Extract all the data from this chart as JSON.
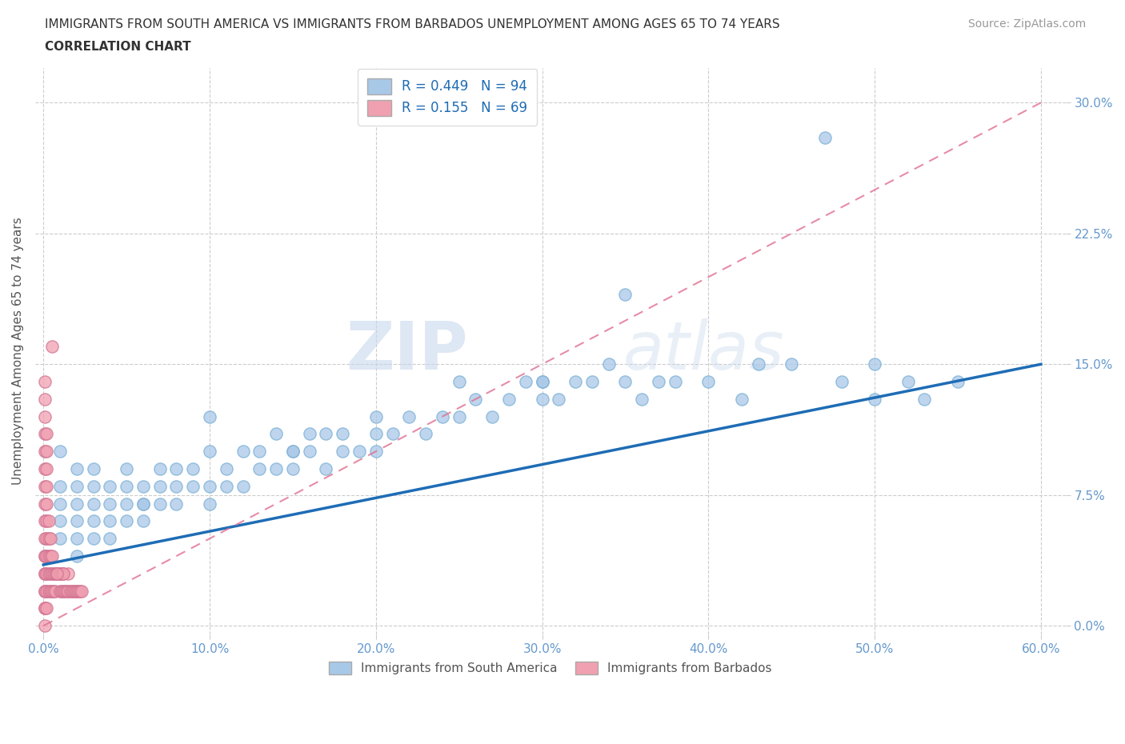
{
  "title_line1": "IMMIGRANTS FROM SOUTH AMERICA VS IMMIGRANTS FROM BARBADOS UNEMPLOYMENT AMONG AGES 65 TO 74 YEARS",
  "title_line2": "CORRELATION CHART",
  "source": "Source: ZipAtlas.com",
  "ylabel": "Unemployment Among Ages 65 to 74 years",
  "xlim": [
    -0.005,
    0.615
  ],
  "ylim": [
    -0.005,
    0.32
  ],
  "xticks": [
    0.0,
    0.1,
    0.2,
    0.3,
    0.4,
    0.5,
    0.6
  ],
  "yticks": [
    0.0,
    0.075,
    0.15,
    0.225,
    0.3
  ],
  "ytick_labels": [
    "0.0%",
    "7.5%",
    "15.0%",
    "22.5%",
    "30.0%"
  ],
  "xtick_labels": [
    "0.0%",
    "10.0%",
    "20.0%",
    "30.0%",
    "40.0%",
    "50.0%",
    "60.0%"
  ],
  "color_sa": "#a8c8e8",
  "color_bbd": "#f0a0b0",
  "trend_sa_color": "#1e6cb5",
  "trend_bbd_color": "#e07090",
  "R_sa": 0.449,
  "N_sa": 94,
  "R_bbd": 0.155,
  "N_bbd": 69,
  "watermark_zip": "ZIP",
  "watermark_atlas": "atlas",
  "legend_label_sa": "Immigrants from South America",
  "legend_label_bbd": "Immigrants from Barbados",
  "background_color": "#ffffff",
  "grid_color": "#cccccc",
  "sa_x": [
    0.01,
    0.01,
    0.01,
    0.01,
    0.01,
    0.02,
    0.02,
    0.02,
    0.02,
    0.02,
    0.02,
    0.03,
    0.03,
    0.03,
    0.03,
    0.03,
    0.04,
    0.04,
    0.04,
    0.04,
    0.05,
    0.05,
    0.05,
    0.05,
    0.06,
    0.06,
    0.06,
    0.07,
    0.07,
    0.07,
    0.08,
    0.08,
    0.09,
    0.09,
    0.1,
    0.1,
    0.1,
    0.11,
    0.11,
    0.12,
    0.12,
    0.13,
    0.13,
    0.14,
    0.14,
    0.15,
    0.15,
    0.16,
    0.16,
    0.17,
    0.17,
    0.18,
    0.18,
    0.19,
    0.2,
    0.2,
    0.21,
    0.22,
    0.23,
    0.24,
    0.25,
    0.26,
    0.27,
    0.28,
    0.29,
    0.3,
    0.3,
    0.31,
    0.32,
    0.33,
    0.34,
    0.35,
    0.36,
    0.37,
    0.38,
    0.4,
    0.42,
    0.43,
    0.45,
    0.47,
    0.48,
    0.5,
    0.5,
    0.52,
    0.53,
    0.55,
    0.3,
    0.2,
    0.35,
    0.25,
    0.15,
    0.1,
    0.08,
    0.06
  ],
  "sa_y": [
    0.05,
    0.06,
    0.08,
    0.1,
    0.07,
    0.04,
    0.06,
    0.08,
    0.09,
    0.05,
    0.07,
    0.05,
    0.06,
    0.08,
    0.07,
    0.09,
    0.05,
    0.07,
    0.08,
    0.06,
    0.06,
    0.07,
    0.08,
    0.09,
    0.06,
    0.07,
    0.08,
    0.07,
    0.08,
    0.09,
    0.07,
    0.09,
    0.08,
    0.09,
    0.07,
    0.08,
    0.1,
    0.08,
    0.09,
    0.08,
    0.1,
    0.09,
    0.1,
    0.09,
    0.11,
    0.09,
    0.1,
    0.1,
    0.11,
    0.09,
    0.11,
    0.1,
    0.11,
    0.1,
    0.1,
    0.12,
    0.11,
    0.12,
    0.11,
    0.12,
    0.12,
    0.13,
    0.12,
    0.13,
    0.14,
    0.13,
    0.14,
    0.13,
    0.14,
    0.14,
    0.15,
    0.14,
    0.13,
    0.14,
    0.14,
    0.14,
    0.13,
    0.15,
    0.15,
    0.28,
    0.14,
    0.15,
    0.13,
    0.14,
    0.13,
    0.14,
    0.14,
    0.11,
    0.19,
    0.14,
    0.1,
    0.12,
    0.08,
    0.07
  ],
  "bbd_x": [
    0.001,
    0.001,
    0.001,
    0.001,
    0.001,
    0.001,
    0.001,
    0.001,
    0.001,
    0.001,
    0.001,
    0.001,
    0.001,
    0.001,
    0.001,
    0.001,
    0.001,
    0.001,
    0.001,
    0.002,
    0.002,
    0.002,
    0.002,
    0.002,
    0.002,
    0.002,
    0.002,
    0.002,
    0.002,
    0.002,
    0.003,
    0.003,
    0.003,
    0.003,
    0.003,
    0.004,
    0.004,
    0.004,
    0.004,
    0.005,
    0.005,
    0.005,
    0.006,
    0.006,
    0.007,
    0.007,
    0.008,
    0.009,
    0.01,
    0.01,
    0.011,
    0.011,
    0.012,
    0.012,
    0.013,
    0.014,
    0.015,
    0.016,
    0.017,
    0.018,
    0.019,
    0.02,
    0.021,
    0.022,
    0.023,
    0.015,
    0.012,
    0.008,
    0.005
  ],
  "bbd_y": [
    0.01,
    0.02,
    0.03,
    0.04,
    0.05,
    0.06,
    0.07,
    0.08,
    0.09,
    0.1,
    0.11,
    0.12,
    0.13,
    0.14,
    0.0,
    0.01,
    0.02,
    0.03,
    0.04,
    0.01,
    0.02,
    0.03,
    0.04,
    0.05,
    0.06,
    0.07,
    0.08,
    0.09,
    0.1,
    0.11,
    0.02,
    0.03,
    0.04,
    0.05,
    0.06,
    0.02,
    0.03,
    0.04,
    0.05,
    0.02,
    0.03,
    0.04,
    0.02,
    0.03,
    0.02,
    0.03,
    0.03,
    0.03,
    0.02,
    0.03,
    0.02,
    0.03,
    0.02,
    0.03,
    0.02,
    0.02,
    0.02,
    0.02,
    0.02,
    0.02,
    0.02,
    0.02,
    0.02,
    0.02,
    0.02,
    0.03,
    0.03,
    0.03,
    0.16
  ],
  "trend_sa_x0": 0.0,
  "trend_sa_y0": 0.035,
  "trend_sa_x1": 0.6,
  "trend_sa_y1": 0.15,
  "trend_bbd_x0": 0.0,
  "trend_bbd_y0": 0.0,
  "trend_bbd_x1": 0.6,
  "trend_bbd_y1": 0.3
}
